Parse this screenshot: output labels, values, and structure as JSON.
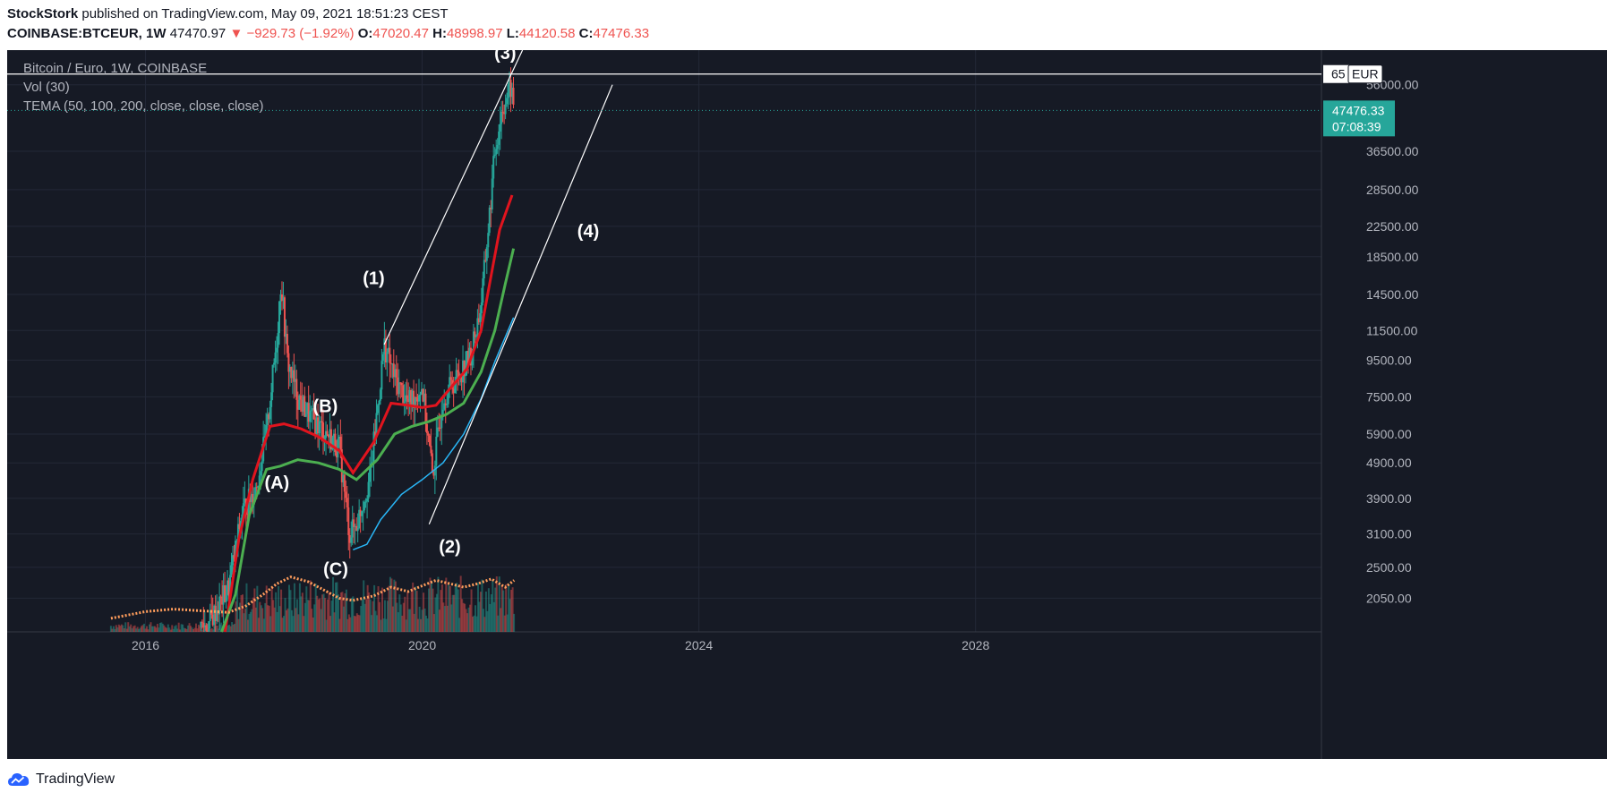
{
  "header": {
    "author": "StockStork",
    "published": "published on TradingView.com, May 09, 2021 18:51:23 CEST",
    "symbol": "COINBASE:BTCEUR, 1W",
    "last": "47470.97",
    "change": "▼ −929.73 (−1.92%)",
    "open_label": "O:",
    "open": "47020.47",
    "high_label": "H:",
    "high": "48998.97",
    "low_label": "L:",
    "low": "44120.58",
    "close_label": "C:",
    "close": "47476.33"
  },
  "legend": {
    "title": "Bitcoin / Euro, 1W, COINBASE",
    "vol": "Vol (30)",
    "tema": "TEMA (50, 100, 200, close, close, close)"
  },
  "footer": {
    "brand": "TradingView",
    "logo_icon": "tradingview-cloud-icon"
  },
  "colors": {
    "background": "#161a25",
    "up": "#26a69a",
    "down": "#ef5350",
    "tema_fast": "#e0141e",
    "tema_mid": "#4caf50",
    "tema_slow": "#29b6f6",
    "vol_ma": "#ff9d5c",
    "price_label": "#26a69a"
  },
  "chart_data": {
    "type": "line",
    "symbol": "BTCEUR",
    "timeframe": "1W",
    "y_scale": "log",
    "grid": true,
    "xlim": [
      2014.0,
      2033.0
    ],
    "ylim": [
      1650,
      70000
    ],
    "x_ticks": [
      "2016",
      "2020",
      "2024",
      "2028"
    ],
    "y_ticks": [
      "56000.00",
      "36500.00",
      "28500.00",
      "22500.00",
      "18500.00",
      "14500.00",
      "11500.00",
      "9500.00",
      "7500.00",
      "5900.00",
      "4900.00",
      "3900.00",
      "3100.00",
      "2500.00",
      "2050.00"
    ],
    "y_top_label_partial": "65",
    "currency_label": "EUR",
    "last_price": "47476.33",
    "countdown": "07:08:39",
    "price_line_top": 60000,
    "price_path": [
      [
        2015.5,
        1700
      ],
      [
        2016.5,
        1700
      ],
      [
        2016.9,
        1720
      ],
      [
        2017.2,
        2200
      ],
      [
        2017.4,
        3600
      ],
      [
        2017.6,
        4200
      ],
      [
        2017.75,
        6000
      ],
      [
        2017.9,
        11000
      ],
      [
        2017.96,
        16000
      ],
      [
        2018.05,
        9500
      ],
      [
        2018.2,
        7500
      ],
      [
        2018.4,
        6500
      ],
      [
        2018.6,
        6000
      ],
      [
        2018.8,
        5400
      ],
      [
        2018.95,
        3100
      ],
      [
        2019.05,
        3300
      ],
      [
        2019.25,
        4500
      ],
      [
        2019.45,
        10500
      ],
      [
        2019.6,
        8500
      ],
      [
        2019.8,
        7200
      ],
      [
        2020.0,
        8000
      ],
      [
        2020.15,
        4500
      ],
      [
        2020.3,
        7500
      ],
      [
        2020.5,
        8500
      ],
      [
        2020.7,
        9800
      ],
      [
        2020.85,
        13500
      ],
      [
        2020.98,
        25000
      ],
      [
        2021.05,
        36500
      ],
      [
        2021.15,
        47500
      ],
      [
        2021.28,
        55000
      ],
      [
        2021.33,
        47476
      ]
    ],
    "tema": [
      {
        "name": "TEMA 50",
        "color": "#e0141e",
        "points": [
          [
            2017.15,
            1650
          ],
          [
            2017.35,
            3000
          ],
          [
            2017.55,
            4400
          ],
          [
            2017.8,
            6200
          ],
          [
            2018.0,
            6300
          ],
          [
            2018.25,
            6100
          ],
          [
            2018.5,
            5800
          ],
          [
            2018.8,
            5300
          ],
          [
            2019.0,
            4600
          ],
          [
            2019.3,
            5600
          ],
          [
            2019.55,
            7200
          ],
          [
            2019.8,
            7100
          ],
          [
            2020.0,
            7000
          ],
          [
            2020.2,
            7100
          ],
          [
            2020.4,
            7900
          ],
          [
            2020.65,
            9000
          ],
          [
            2020.85,
            11500
          ],
          [
            2021.0,
            16500
          ],
          [
            2021.12,
            22000
          ],
          [
            2021.3,
            27500
          ]
        ]
      },
      {
        "name": "TEMA 100",
        "color": "#4caf50",
        "points": [
          [
            2017.1,
            1650
          ],
          [
            2017.3,
            2100
          ],
          [
            2017.5,
            3500
          ],
          [
            2017.75,
            4700
          ],
          [
            2017.95,
            4800
          ],
          [
            2018.2,
            5000
          ],
          [
            2018.5,
            4900
          ],
          [
            2018.8,
            4700
          ],
          [
            2019.05,
            4400
          ],
          [
            2019.35,
            5000
          ],
          [
            2019.6,
            5900
          ],
          [
            2019.85,
            6200
          ],
          [
            2020.1,
            6400
          ],
          [
            2020.35,
            6700
          ],
          [
            2020.6,
            7200
          ],
          [
            2020.85,
            8800
          ],
          [
            2021.05,
            11500
          ],
          [
            2021.2,
            15500
          ],
          [
            2021.32,
            19500
          ]
        ]
      },
      {
        "name": "TEMA 200",
        "color": "#29b6f6",
        "points": [
          [
            2019.0,
            2800
          ],
          [
            2019.2,
            2900
          ],
          [
            2019.4,
            3400
          ],
          [
            2019.7,
            4000
          ],
          [
            2020.0,
            4400
          ],
          [
            2020.3,
            4900
          ],
          [
            2020.6,
            5900
          ],
          [
            2020.85,
            7400
          ],
          [
            2021.05,
            9400
          ],
          [
            2021.32,
            12500
          ]
        ]
      }
    ],
    "volume_ma": [
      [
        2015.5,
        1800
      ],
      [
        2016.0,
        1880
      ],
      [
        2016.4,
        1910
      ],
      [
        2016.8,
        1890
      ],
      [
        2017.2,
        1870
      ],
      [
        2017.45,
        1950
      ],
      [
        2017.7,
        2100
      ],
      [
        2017.9,
        2250
      ],
      [
        2018.1,
        2350
      ],
      [
        2018.35,
        2280
      ],
      [
        2018.6,
        2150
      ],
      [
        2018.8,
        2050
      ],
      [
        2019.0,
        2020
      ],
      [
        2019.3,
        2080
      ],
      [
        2019.55,
        2200
      ],
      [
        2019.8,
        2140
      ],
      [
        2020.0,
        2220
      ],
      [
        2020.2,
        2300
      ],
      [
        2020.4,
        2250
      ],
      [
        2020.6,
        2200
      ],
      [
        2020.8,
        2250
      ],
      [
        2021.0,
        2320
      ],
      [
        2021.2,
        2200
      ],
      [
        2021.33,
        2300
      ]
    ],
    "trendlines": [
      {
        "from": [
          2019.45,
          10500
        ],
        "to": [
          2021.45,
          70000
        ]
      },
      {
        "from": [
          2020.1,
          3300
        ],
        "to": [
          2022.75,
          56000
        ]
      }
    ],
    "annotations": [
      {
        "text": "(3)",
        "x": 2021.2,
        "y": 66000
      },
      {
        "text": "(4)",
        "x": 2022.4,
        "y": 21000
      },
      {
        "text": "(1)",
        "x": 2019.3,
        "y": 15500
      },
      {
        "text": "(B)",
        "x": 2018.6,
        "y": 6800
      },
      {
        "text": "(A)",
        "x": 2017.9,
        "y": 4150
      },
      {
        "text": "(2)",
        "x": 2020.4,
        "y": 2750
      },
      {
        "text": "(C)",
        "x": 2018.75,
        "y": 2380
      }
    ]
  }
}
